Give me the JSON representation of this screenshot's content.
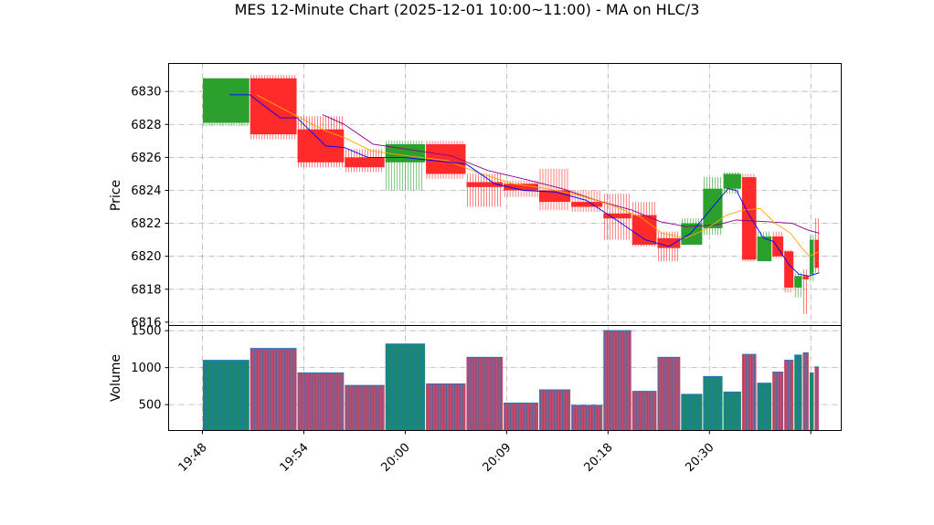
{
  "chart_data": {
    "type": "candlestick",
    "title": "MES 12-Minute Chart (2025-12-01 10:00~11:00) - MA on HLC/3",
    "price_panel": {
      "ylabel": "Price",
      "ylim": [
        6815.8,
        6831.7
      ],
      "yticks": [
        6816,
        6818,
        6820,
        6822,
        6824,
        6826,
        6828,
        6830
      ]
    },
    "volume_panel": {
      "ylabel": "Volume",
      "ylim": [
        150,
        1570
      ],
      "yticks": [
        500,
        1000,
        1500
      ]
    },
    "x_tick_labels": [
      "19:48",
      "19:54",
      "20:00",
      "20:09",
      "20:18",
      "20:30",
      ""
    ],
    "x_tick_positions": [
      0,
      6,
      12,
      18,
      24,
      30,
      36
    ],
    "xlim": [
      -2,
      37.8
    ],
    "colors": {
      "up": "#2ca02c",
      "down": "#ff2a2a",
      "volume_up": "#1a8a6a",
      "volume_down": "#c24a6a",
      "volume_edge": "#1f77b4",
      "ma_fast": "#0000ff",
      "ma_mid": "#ffa500",
      "ma_slow": "#8b008b"
    },
    "candles": [
      {
        "x0": 0.0,
        "x1": 2.8,
        "open": 6828.1,
        "high": 6830.8,
        "low": 6827.9,
        "close": 6830.8,
        "volume": 1100
      },
      {
        "x0": 2.8,
        "x1": 5.6,
        "open": 6830.8,
        "high": 6831.0,
        "low": 6827.1,
        "close": 6827.4,
        "volume": 1260
      },
      {
        "x0": 5.6,
        "x1": 8.4,
        "open": 6827.7,
        "high": 6828.5,
        "low": 6825.4,
        "close": 6825.7,
        "volume": 930
      },
      {
        "x0": 8.4,
        "x1": 10.8,
        "open": 6826.0,
        "high": 6826.5,
        "low": 6825.1,
        "close": 6825.4,
        "volume": 760
      },
      {
        "x0": 10.8,
        "x1": 13.2,
        "open": 6825.7,
        "high": 6827.0,
        "low": 6824.0,
        "close": 6826.8,
        "volume": 1320
      },
      {
        "x0": 13.2,
        "x1": 15.6,
        "open": 6826.8,
        "high": 6827.0,
        "low": 6824.7,
        "close": 6825.0,
        "volume": 780
      },
      {
        "x0": 15.6,
        "x1": 17.8,
        "open": 6824.5,
        "high": 6825.0,
        "low": 6823.0,
        "close": 6824.2,
        "volume": 1140
      },
      {
        "x0": 17.8,
        "x1": 19.9,
        "open": 6824.4,
        "high": 6824.6,
        "low": 6823.6,
        "close": 6824.0,
        "volume": 520
      },
      {
        "x0": 19.9,
        "x1": 21.8,
        "open": 6824.0,
        "high": 6825.3,
        "low": 6822.8,
        "close": 6823.3,
        "volume": 700
      },
      {
        "x0": 21.8,
        "x1": 23.7,
        "open": 6823.3,
        "high": 6824.0,
        "low": 6822.7,
        "close": 6823.0,
        "volume": 490
      },
      {
        "x0": 23.7,
        "x1": 25.4,
        "open": 6822.6,
        "high": 6823.8,
        "low": 6821.0,
        "close": 6822.3,
        "volume": 1500
      },
      {
        "x0": 25.4,
        "x1": 26.9,
        "open": 6822.5,
        "high": 6823.3,
        "low": 6820.6,
        "close": 6820.7,
        "volume": 680
      },
      {
        "x0": 26.9,
        "x1": 28.3,
        "open": 6821.1,
        "high": 6821.5,
        "low": 6819.7,
        "close": 6820.5,
        "volume": 1140
      },
      {
        "x0": 28.3,
        "x1": 29.6,
        "open": 6820.7,
        "high": 6822.3,
        "low": 6820.7,
        "close": 6822.0,
        "volume": 640
      },
      {
        "x0": 29.6,
        "x1": 30.8,
        "open": 6821.7,
        "high": 6824.8,
        "low": 6821.3,
        "close": 6824.1,
        "volume": 880
      },
      {
        "x0": 30.8,
        "x1": 31.9,
        "open": 6824.1,
        "high": 6825.1,
        "low": 6823.8,
        "close": 6825.0,
        "volume": 670
      },
      {
        "x0": 31.9,
        "x1": 32.8,
        "open": 6824.8,
        "high": 6825.0,
        "low": 6819.7,
        "close": 6819.8,
        "volume": 1180
      },
      {
        "x0": 32.8,
        "x1": 33.7,
        "open": 6819.7,
        "high": 6821.5,
        "low": 6819.7,
        "close": 6821.2,
        "volume": 790
      },
      {
        "x0": 33.7,
        "x1": 34.4,
        "open": 6821.2,
        "high": 6821.5,
        "low": 6819.9,
        "close": 6820.0,
        "volume": 940
      },
      {
        "x0": 34.4,
        "x1": 35.0,
        "open": 6820.3,
        "high": 6820.4,
        "low": 6817.8,
        "close": 6818.1,
        "volume": 1100
      },
      {
        "x0": 35.0,
        "x1": 35.5,
        "open": 6818.1,
        "high": 6819.0,
        "low": 6817.5,
        "close": 6818.8,
        "volume": 1170
      },
      {
        "x0": 35.5,
        "x1": 35.9,
        "open": 6818.8,
        "high": 6819.2,
        "low": 6816.5,
        "close": 6818.6,
        "volume": 1200
      },
      {
        "x0": 35.9,
        "x1": 36.2,
        "open": 6818.9,
        "high": 6821.3,
        "low": 6818.5,
        "close": 6821.0,
        "volume": 930
      },
      {
        "x0": 36.2,
        "x1": 36.5,
        "open": 6821.0,
        "high": 6822.3,
        "low": 6819.0,
        "close": 6819.3,
        "volume": 1010
      }
    ],
    "ma_fast": [
      [
        1.6,
        6829.8
      ],
      [
        2.8,
        6829.8
      ],
      [
        4.6,
        6828.4
      ],
      [
        5.6,
        6828.4
      ],
      [
        7.3,
        6826.7
      ],
      [
        8.4,
        6826.6
      ],
      [
        9.8,
        6826.0
      ],
      [
        11.9,
        6826.0
      ],
      [
        14.7,
        6825.7
      ],
      [
        15.6,
        6825.6
      ],
      [
        17.3,
        6824.4
      ],
      [
        19.0,
        6824.0
      ],
      [
        20.9,
        6823.9
      ],
      [
        22.7,
        6823.4
      ],
      [
        24.5,
        6822.2
      ],
      [
        26.2,
        6821.0
      ],
      [
        27.6,
        6820.6
      ],
      [
        28.9,
        6821.4
      ],
      [
        30.2,
        6823.0
      ],
      [
        31.1,
        6824.1
      ],
      [
        31.6,
        6824.0
      ],
      [
        32.3,
        6822.6
      ],
      [
        33.2,
        6821.1
      ],
      [
        33.8,
        6820.9
      ],
      [
        34.7,
        6819.5
      ],
      [
        35.3,
        6818.9
      ],
      [
        35.9,
        6818.8
      ],
      [
        36.5,
        6819.0
      ]
    ],
    "ma_mid": [
      [
        3.2,
        6829.8
      ],
      [
        5.6,
        6828.5
      ],
      [
        7.3,
        6827.6
      ],
      [
        8.4,
        6827.2
      ],
      [
        10.0,
        6826.4
      ],
      [
        12.1,
        6826.1
      ],
      [
        14.5,
        6825.8
      ],
      [
        16.5,
        6825.0
      ],
      [
        18.4,
        6824.4
      ],
      [
        20.4,
        6824.1
      ],
      [
        22.3,
        6823.7
      ],
      [
        24.2,
        6823.1
      ],
      [
        25.9,
        6822.4
      ],
      [
        27.2,
        6821.4
      ],
      [
        28.6,
        6821.1
      ],
      [
        29.9,
        6821.7
      ],
      [
        31.0,
        6822.5
      ],
      [
        32.0,
        6822.8
      ],
      [
        33.0,
        6822.9
      ],
      [
        33.9,
        6822.0
      ],
      [
        34.8,
        6821.4
      ],
      [
        35.4,
        6820.6
      ],
      [
        35.9,
        6820.0
      ],
      [
        36.5,
        6820.3
      ]
    ],
    "ma_slow": [
      [
        7.1,
        6828.6
      ],
      [
        8.4,
        6828.0
      ],
      [
        10.1,
        6826.8
      ],
      [
        12.1,
        6826.5
      ],
      [
        14.7,
        6826.1
      ],
      [
        16.9,
        6825.2
      ],
      [
        19.0,
        6824.7
      ],
      [
        21.3,
        6824.1
      ],
      [
        23.3,
        6823.4
      ],
      [
        25.4,
        6822.8
      ],
      [
        27.1,
        6822.1
      ],
      [
        28.6,
        6821.8
      ],
      [
        30.4,
        6821.9
      ],
      [
        31.6,
        6822.2
      ],
      [
        33.4,
        6822.1
      ],
      [
        34.9,
        6822.0
      ],
      [
        35.8,
        6821.6
      ],
      [
        36.5,
        6821.4
      ]
    ]
  }
}
